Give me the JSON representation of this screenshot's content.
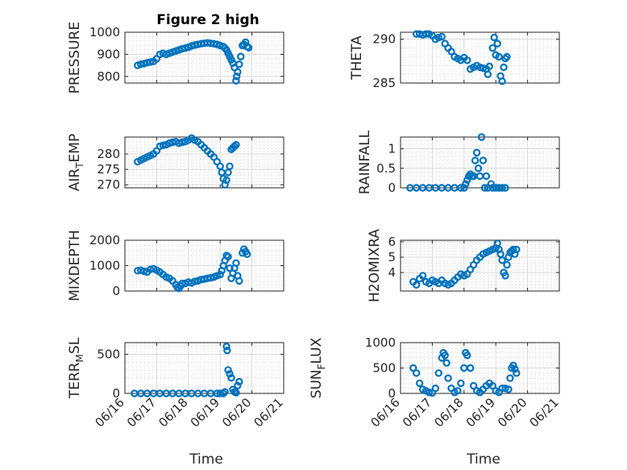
{
  "figure": {
    "title": "Figure 2 high",
    "marker_color": "#0072BD",
    "x_axis_label": "Time",
    "x_tick_labels": [
      "06/16",
      "06/17",
      "06/18",
      "06/19",
      "06/20",
      "06/21"
    ]
  },
  "chart_data": [
    {
      "type": "scatter",
      "marker": "circle",
      "title": "Figure 2 high",
      "ylabel": "PRESSURE",
      "xlim": [
        0,
        5
      ],
      "ylim": [
        770,
        1000
      ],
      "yticks": [
        800,
        900,
        1000
      ],
      "grid": true,
      "points": [
        [
          0.4,
          850
        ],
        [
          0.5,
          855
        ],
        [
          0.6,
          858
        ],
        [
          0.7,
          862
        ],
        [
          0.8,
          865
        ],
        [
          0.9,
          868
        ],
        [
          1.0,
          880
        ],
        [
          1.1,
          900
        ],
        [
          1.2,
          905
        ],
        [
          1.3,
          900
        ],
        [
          1.4,
          905
        ],
        [
          1.5,
          910
        ],
        [
          1.6,
          915
        ],
        [
          1.7,
          920
        ],
        [
          1.8,
          925
        ],
        [
          1.9,
          928
        ],
        [
          2.0,
          932
        ],
        [
          2.1,
          938
        ],
        [
          2.2,
          942
        ],
        [
          2.3,
          945
        ],
        [
          2.4,
          948
        ],
        [
          2.5,
          950
        ],
        [
          2.6,
          952
        ],
        [
          2.7,
          950
        ],
        [
          2.8,
          948
        ],
        [
          2.9,
          945
        ],
        [
          3.0,
          940
        ],
        [
          3.1,
          935
        ],
        [
          3.15,
          928
        ],
        [
          3.2,
          920
        ],
        [
          3.25,
          905
        ],
        [
          3.3,
          890
        ],
        [
          3.35,
          875
        ],
        [
          3.4,
          860
        ],
        [
          3.45,
          840
        ],
        [
          3.5,
          780
        ],
        [
          3.52,
          800
        ],
        [
          3.55,
          820
        ],
        [
          3.6,
          855
        ],
        [
          3.65,
          890
        ],
        [
          3.7,
          940
        ],
        [
          3.75,
          945
        ],
        [
          3.8,
          955
        ],
        [
          3.85,
          935
        ],
        [
          3.9,
          930
        ]
      ]
    },
    {
      "type": "scatter",
      "marker": "circle",
      "ylabel": "THETA",
      "xlim": [
        0,
        5
      ],
      "ylim": [
        285,
        290.8
      ],
      "yticks": [
        285,
        290
      ],
      "grid": true,
      "points": [
        [
          0.5,
          290.6
        ],
        [
          0.6,
          290.6
        ],
        [
          0.7,
          290.5
        ],
        [
          0.8,
          290.6
        ],
        [
          0.9,
          290.6
        ],
        [
          1.0,
          290.4
        ],
        [
          1.1,
          290.0
        ],
        [
          1.2,
          290.2
        ],
        [
          1.3,
          290.3
        ],
        [
          1.4,
          289.5
        ],
        [
          1.5,
          289.0
        ],
        [
          1.6,
          288.6
        ],
        [
          1.7,
          288.0
        ],
        [
          1.8,
          287.8
        ],
        [
          1.9,
          287.6
        ],
        [
          2.0,
          287.9
        ],
        [
          2.1,
          287.6
        ],
        [
          2.2,
          286.6
        ],
        [
          2.3,
          286.8
        ],
        [
          2.4,
          287.0
        ],
        [
          2.5,
          286.8
        ],
        [
          2.6,
          286.7
        ],
        [
          2.7,
          286.6
        ],
        [
          2.75,
          286.0
        ],
        [
          2.8,
          286.9
        ],
        [
          2.9,
          289.0
        ],
        [
          2.95,
          290.2
        ],
        [
          3.0,
          288.2
        ],
        [
          3.05,
          289.5
        ],
        [
          3.1,
          288.0
        ],
        [
          3.15,
          285.8
        ],
        [
          3.2,
          285.2
        ],
        [
          3.25,
          286.8
        ],
        [
          3.3,
          287.8
        ],
        [
          3.35,
          288.0
        ]
      ]
    },
    {
      "type": "scatter",
      "marker": "circle",
      "ylabel": "AIR",
      "ylabel_sub": "T",
      "ylabel_tail": "EMP",
      "xlim": [
        0,
        5
      ],
      "ylim": [
        269,
        285.5
      ],
      "yticks": [
        270,
        275,
        280
      ],
      "grid": true,
      "points": [
        [
          0.4,
          277.5
        ],
        [
          0.5,
          278.0
        ],
        [
          0.6,
          278.5
        ],
        [
          0.7,
          279.0
        ],
        [
          0.8,
          279.5
        ],
        [
          0.9,
          280.0
        ],
        [
          1.0,
          281.0
        ],
        [
          1.1,
          282.5
        ],
        [
          1.2,
          282.8
        ],
        [
          1.3,
          283.0
        ],
        [
          1.4,
          283.5
        ],
        [
          1.5,
          283.8
        ],
        [
          1.6,
          284.0
        ],
        [
          1.7,
          283.5
        ],
        [
          1.8,
          283.8
        ],
        [
          1.9,
          284.0
        ],
        [
          2.0,
          284.5
        ],
        [
          2.1,
          285.2
        ],
        [
          2.2,
          284.5
        ],
        [
          2.3,
          284.0
        ],
        [
          2.4,
          283.0
        ],
        [
          2.5,
          282.0
        ],
        [
          2.6,
          281.0
        ],
        [
          2.7,
          280.0
        ],
        [
          2.8,
          279.0
        ],
        [
          2.9,
          277.5
        ],
        [
          3.0,
          276.0
        ],
        [
          3.05,
          274.0
        ],
        [
          3.1,
          272.0
        ],
        [
          3.15,
          270.0
        ],
        [
          3.2,
          271.5
        ],
        [
          3.25,
          274.0
        ],
        [
          3.3,
          276.0
        ],
        [
          3.35,
          281.5
        ],
        [
          3.4,
          282.0
        ],
        [
          3.45,
          282.5
        ],
        [
          3.5,
          283.0
        ]
      ]
    },
    {
      "type": "scatter",
      "marker": "circle",
      "ylabel": "RAINFALL",
      "xlim": [
        0,
        5
      ],
      "ylim": [
        0,
        1.3
      ],
      "yticks": [
        0,
        0.5,
        1
      ],
      "grid": true,
      "points": [
        [
          0.3,
          0
        ],
        [
          0.5,
          0
        ],
        [
          0.7,
          0
        ],
        [
          0.9,
          0
        ],
        [
          1.1,
          0
        ],
        [
          1.3,
          0
        ],
        [
          1.5,
          0
        ],
        [
          1.7,
          0
        ],
        [
          1.9,
          0
        ],
        [
          2.0,
          0
        ],
        [
          2.05,
          0.1
        ],
        [
          2.1,
          0.2
        ],
        [
          2.15,
          0.3
        ],
        [
          2.2,
          0.35
        ],
        [
          2.25,
          0.3
        ],
        [
          2.3,
          0.3
        ],
        [
          2.35,
          0.7
        ],
        [
          2.4,
          0.9
        ],
        [
          2.45,
          0.5
        ],
        [
          2.5,
          0.3
        ],
        [
          2.55,
          1.3
        ],
        [
          2.6,
          0.7
        ],
        [
          2.65,
          0
        ],
        [
          2.7,
          0.3
        ],
        [
          2.75,
          0
        ],
        [
          2.85,
          0.1
        ],
        [
          2.9,
          0
        ],
        [
          3.0,
          0
        ],
        [
          3.1,
          0
        ],
        [
          3.2,
          0
        ],
        [
          3.3,
          0
        ]
      ]
    },
    {
      "type": "scatter",
      "marker": "circle",
      "ylabel": "MIXDEPTH",
      "xlim": [
        0,
        5
      ],
      "ylim": [
        0,
        2000
      ],
      "yticks": [
        0,
        1000,
        2000
      ],
      "grid": true,
      "points": [
        [
          0.4,
          800
        ],
        [
          0.5,
          820
        ],
        [
          0.6,
          780
        ],
        [
          0.7,
          750
        ],
        [
          0.8,
          850
        ],
        [
          0.9,
          880
        ],
        [
          1.0,
          820
        ],
        [
          1.1,
          750
        ],
        [
          1.2,
          650
        ],
        [
          1.3,
          550
        ],
        [
          1.4,
          500
        ],
        [
          1.5,
          400
        ],
        [
          1.6,
          250
        ],
        [
          1.65,
          150
        ],
        [
          1.7,
          100
        ],
        [
          1.75,
          200
        ],
        [
          1.8,
          300
        ],
        [
          1.9,
          300
        ],
        [
          2.0,
          350
        ],
        [
          2.1,
          320
        ],
        [
          2.2,
          380
        ],
        [
          2.3,
          400
        ],
        [
          2.4,
          450
        ],
        [
          2.5,
          470
        ],
        [
          2.6,
          500
        ],
        [
          2.7,
          520
        ],
        [
          2.8,
          550
        ],
        [
          2.9,
          600
        ],
        [
          3.0,
          650
        ],
        [
          3.05,
          800
        ],
        [
          3.1,
          1000
        ],
        [
          3.15,
          1200
        ],
        [
          3.2,
          1400
        ],
        [
          3.25,
          1350
        ],
        [
          3.3,
          900
        ],
        [
          3.35,
          500
        ],
        [
          3.4,
          700
        ],
        [
          3.45,
          900
        ],
        [
          3.5,
          1100
        ],
        [
          3.55,
          600
        ],
        [
          3.6,
          400
        ],
        [
          3.7,
          1500
        ],
        [
          3.75,
          1650
        ],
        [
          3.8,
          1550
        ],
        [
          3.85,
          1450
        ]
      ]
    },
    {
      "type": "scatter",
      "marker": "circle",
      "ylabel": "H2OMIXRA",
      "xlim": [
        0,
        5
      ],
      "ylim": [
        2.8,
        6.1
      ],
      "yticks": [
        4,
        5,
        6
      ],
      "grid": true,
      "points": [
        [
          0.4,
          3.4
        ],
        [
          0.5,
          3.2
        ],
        [
          0.6,
          3.6
        ],
        [
          0.7,
          3.8
        ],
        [
          0.8,
          3.4
        ],
        [
          0.9,
          3.3
        ],
        [
          1.0,
          3.5
        ],
        [
          1.1,
          3.4
        ],
        [
          1.2,
          3.3
        ],
        [
          1.3,
          3.5
        ],
        [
          1.4,
          3.3
        ],
        [
          1.5,
          3.2
        ],
        [
          1.6,
          3.3
        ],
        [
          1.7,
          3.5
        ],
        [
          1.8,
          3.7
        ],
        [
          1.9,
          3.9
        ],
        [
          2.0,
          3.8
        ],
        [
          2.1,
          3.9
        ],
        [
          2.2,
          4.2
        ],
        [
          2.3,
          4.5
        ],
        [
          2.4,
          4.8
        ],
        [
          2.5,
          5.0
        ],
        [
          2.6,
          5.2
        ],
        [
          2.7,
          5.3
        ],
        [
          2.8,
          5.4
        ],
        [
          2.9,
          5.5
        ],
        [
          3.0,
          5.6
        ],
        [
          3.05,
          5.9
        ],
        [
          3.1,
          5.5
        ],
        [
          3.15,
          5.2
        ],
        [
          3.2,
          4.8
        ],
        [
          3.25,
          4.0
        ],
        [
          3.3,
          3.8
        ],
        [
          3.35,
          4.5
        ],
        [
          3.4,
          5.0
        ],
        [
          3.45,
          5.3
        ],
        [
          3.5,
          5.4
        ],
        [
          3.55,
          5.5
        ],
        [
          3.6,
          5.2
        ],
        [
          3.65,
          5.5
        ]
      ]
    },
    {
      "type": "scatter",
      "marker": "circle",
      "ylabel": "TERR",
      "ylabel_sub": "M",
      "ylabel_tail": "SL",
      "xlim": [
        0,
        5
      ],
      "ylim": [
        0,
        650
      ],
      "yticks": [
        0,
        500
      ],
      "grid": true,
      "points": [
        [
          0.3,
          0
        ],
        [
          0.5,
          0
        ],
        [
          0.7,
          0
        ],
        [
          0.9,
          0
        ],
        [
          1.1,
          0
        ],
        [
          1.3,
          0
        ],
        [
          1.5,
          0
        ],
        [
          1.7,
          0
        ],
        [
          1.9,
          0
        ],
        [
          2.1,
          0
        ],
        [
          2.3,
          0
        ],
        [
          2.5,
          0
        ],
        [
          2.7,
          0
        ],
        [
          2.9,
          0
        ],
        [
          3.0,
          0
        ],
        [
          3.1,
          0
        ],
        [
          3.15,
          20
        ],
        [
          3.2,
          600
        ],
        [
          3.22,
          550
        ],
        [
          3.25,
          300
        ],
        [
          3.3,
          250
        ],
        [
          3.35,
          200
        ],
        [
          3.4,
          50
        ],
        [
          3.45,
          20
        ],
        [
          3.5,
          10
        ],
        [
          3.55,
          100
        ],
        [
          3.6,
          150
        ]
      ]
    },
    {
      "type": "scatter",
      "marker": "circle",
      "ylabel": "SUN",
      "ylabel_sub": "F",
      "ylabel_tail": "LUX",
      "xlim": [
        0,
        5
      ],
      "ylim": [
        0,
        1000
      ],
      "yticks": [
        0,
        500,
        1000
      ],
      "grid": true,
      "points": [
        [
          0.4,
          500
        ],
        [
          0.5,
          400
        ],
        [
          0.6,
          200
        ],
        [
          0.7,
          80
        ],
        [
          0.8,
          50
        ],
        [
          0.9,
          20
        ],
        [
          1.0,
          10
        ],
        [
          1.1,
          100
        ],
        [
          1.2,
          400
        ],
        [
          1.3,
          700
        ],
        [
          1.35,
          800
        ],
        [
          1.4,
          750
        ],
        [
          1.45,
          600
        ],
        [
          1.5,
          300
        ],
        [
          1.6,
          100
        ],
        [
          1.7,
          20
        ],
        [
          1.8,
          50
        ],
        [
          1.9,
          200
        ],
        [
          2.0,
          500
        ],
        [
          2.05,
          800
        ],
        [
          2.1,
          750
        ],
        [
          2.2,
          500
        ],
        [
          2.3,
          150
        ],
        [
          2.4,
          50
        ],
        [
          2.5,
          20
        ],
        [
          2.6,
          80
        ],
        [
          2.7,
          150
        ],
        [
          2.8,
          200
        ],
        [
          2.9,
          150
        ],
        [
          3.0,
          50
        ],
        [
          3.1,
          20
        ],
        [
          3.2,
          100
        ],
        [
          3.3,
          100
        ],
        [
          3.4,
          80
        ],
        [
          3.45,
          300
        ],
        [
          3.5,
          500
        ],
        [
          3.55,
          550
        ],
        [
          3.6,
          480
        ],
        [
          3.65,
          400
        ]
      ]
    }
  ]
}
